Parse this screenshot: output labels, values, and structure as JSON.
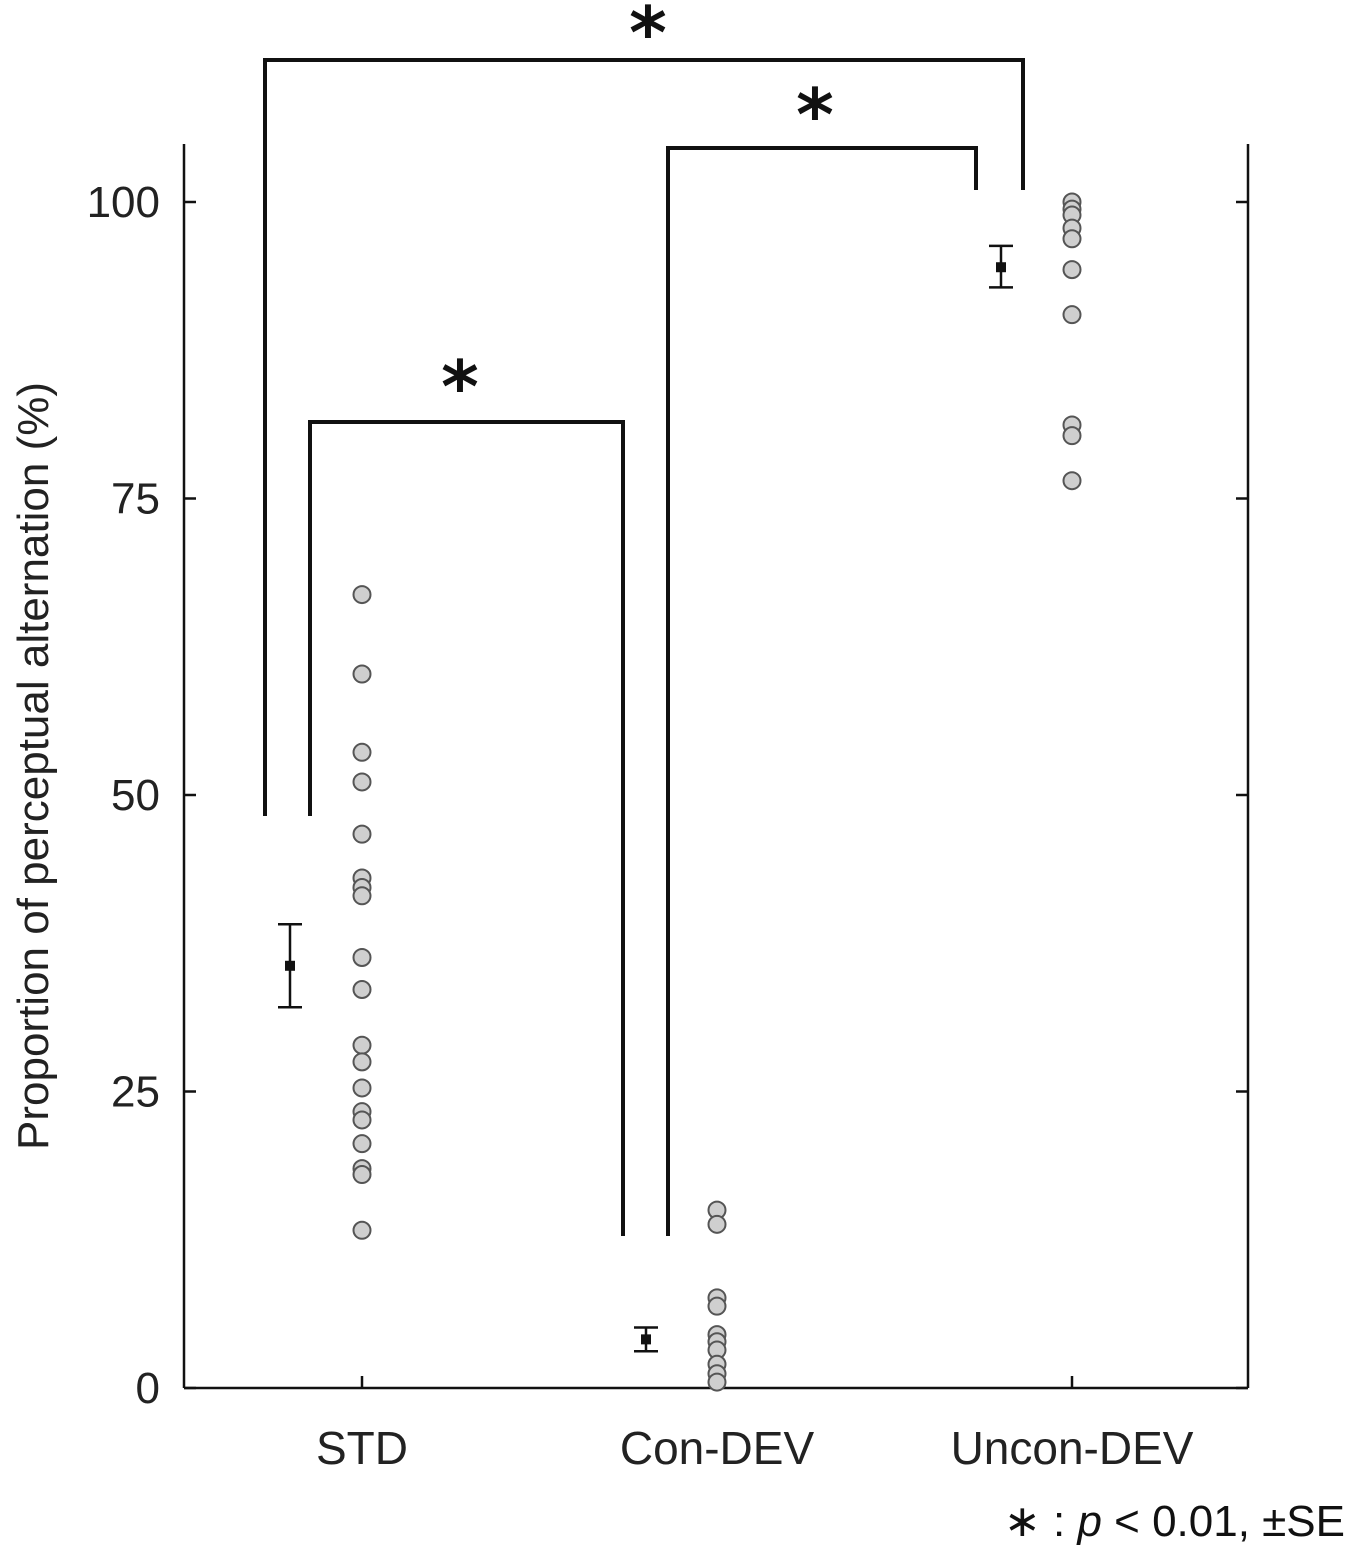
{
  "chart_data": {
    "type": "scatter",
    "ylabel": "Proportion of perceptual alternation (%)",
    "xlabel": "",
    "ylim": [
      0,
      100
    ],
    "yticks": [
      0,
      25,
      50,
      75,
      100
    ],
    "categories": [
      "STD",
      "Con-DEV",
      "Uncon-DEV"
    ],
    "groups": [
      {
        "category": "STD",
        "mean": 35.6,
        "se_low": 32.1,
        "se_high": 39.1,
        "points": [
          66.9,
          60.2,
          53.6,
          51.1,
          46.7,
          43.0,
          42.2,
          41.5,
          36.3,
          33.6,
          28.9,
          27.5,
          25.3,
          23.3,
          22.6,
          20.6,
          18.5,
          18.0,
          13.3
        ]
      },
      {
        "category": "Con-DEV",
        "mean": 4.1,
        "se_low": 3.1,
        "se_high": 5.1,
        "points": [
          15.0,
          13.8,
          7.6,
          6.9,
          4.5,
          3.9,
          3.2,
          2.0,
          1.2,
          0.5
        ]
      },
      {
        "category": "Uncon-DEV",
        "mean": 94.5,
        "se_low": 92.8,
        "se_high": 96.3,
        "points": [
          100.0,
          99.4,
          98.9,
          97.8,
          96.9,
          94.3,
          90.5,
          81.2,
          80.3,
          76.5
        ]
      }
    ],
    "significance": [
      {
        "pair": [
          "STD",
          "Uncon-DEV"
        ],
        "marker": "*"
      },
      {
        "pair": [
          "Con-DEV",
          "Uncon-DEV"
        ],
        "marker": "*"
      },
      {
        "pair": [
          "STD",
          "Con-DEV"
        ],
        "marker": "*"
      }
    ],
    "note": {
      "prefix": "∗ : ",
      "italic": "p",
      "suffix": " < 0.01, ±SE"
    }
  }
}
